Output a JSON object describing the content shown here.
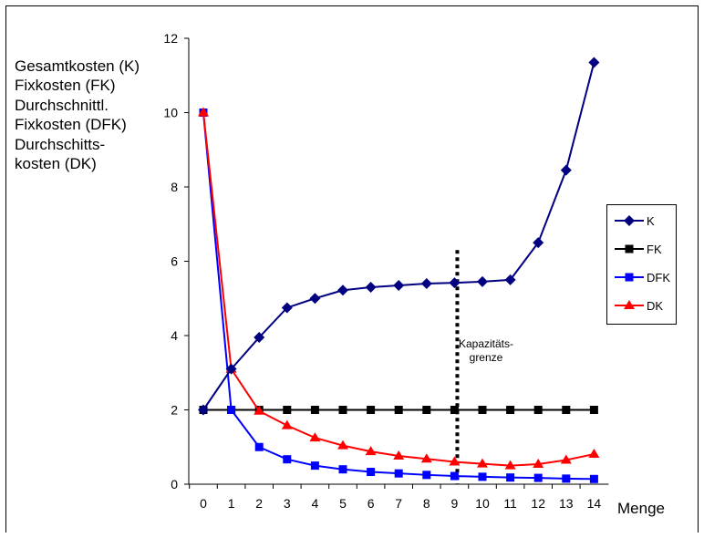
{
  "chart_data": {
    "type": "line",
    "xlabel": "Menge",
    "ylabel_lines": [
      "Gesamtkosten (K)",
      "Fixkosten (FK)",
      "Durchschnittl.",
      "Fixkosten (DFK)",
      "Durchschitts-",
      "kosten (DK)"
    ],
    "x": [
      0,
      1,
      2,
      3,
      4,
      5,
      6,
      7,
      8,
      9,
      10,
      11,
      12,
      13,
      14
    ],
    "ylim": [
      0,
      12
    ],
    "yticks": [
      0,
      2,
      4,
      6,
      8,
      10,
      12
    ],
    "legend_position": "right",
    "grid": false,
    "series": [
      {
        "name": "K",
        "color": "#000080",
        "marker": "diamond",
        "values": [
          2,
          3.1,
          3.95,
          4.75,
          5.0,
          5.22,
          5.3,
          5.35,
          5.4,
          5.42,
          5.45,
          5.5,
          6.5,
          8.45,
          11.35
        ]
      },
      {
        "name": "FK",
        "color": "#000000",
        "marker": "square",
        "values": [
          2,
          2,
          2,
          2,
          2,
          2,
          2,
          2,
          2,
          2,
          2,
          2,
          2,
          2,
          2
        ]
      },
      {
        "name": "DFK",
        "color": "#0000ff",
        "marker": "square",
        "values": [
          10,
          2,
          1.0,
          0.67,
          0.5,
          0.4,
          0.33,
          0.29,
          0.25,
          0.22,
          0.2,
          0.18,
          0.17,
          0.15,
          0.14
        ]
      },
      {
        "name": "DK",
        "color": "#ff0000",
        "marker": "triangle",
        "values": [
          10,
          3.1,
          1.97,
          1.58,
          1.25,
          1.04,
          0.88,
          0.76,
          0.68,
          0.6,
          0.55,
          0.5,
          0.54,
          0.65,
          0.81
        ]
      }
    ],
    "annotation": {
      "type": "vertical-dotted-line",
      "x": 9.1,
      "y_top": 6.3,
      "label_lines": [
        "Kapazitäts-",
        "grenze"
      ]
    }
  }
}
